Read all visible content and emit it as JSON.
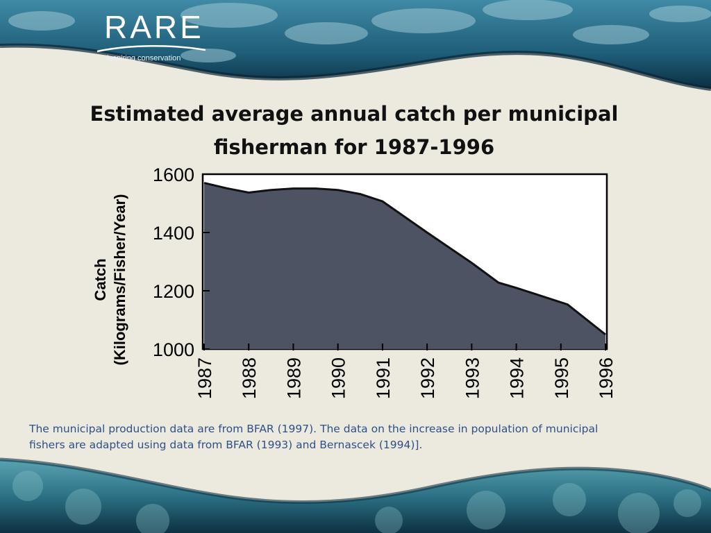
{
  "logo": {
    "name": "RARE",
    "tagline": "inspiring conservation"
  },
  "colors": {
    "area_fill": "#4e5363",
    "area_line": "#111111",
    "plot_bg": "#ffffff",
    "caption": "#2e4f88",
    "ocean_dark": "#0c3347",
    "ocean_mid": "#2a6b86"
  },
  "slide": {
    "title_line1": "Estimated average annual catch per municipal",
    "title_line2": "fisherman for 1987-1996",
    "caption_line1": "The municipal production data are from BFAR (1997). The data on the increase in population of municipal",
    "caption_line2": "fishers are adapted using data from BFAR (1993) and Bernascek (1994)]."
  },
  "chart_data": {
    "type": "area",
    "title": "Estimated average annual catch per municipal fisherman for 1987-1996",
    "ylabel_line1": "Catch",
    "ylabel_line2": "(Kilograms/Fisher/Year)",
    "xlabel": "",
    "ylim": [
      1000,
      1600
    ],
    "yticks": [
      1000,
      1200,
      1400,
      1600
    ],
    "xlim": [
      1987,
      1996
    ],
    "xticks": [
      1987,
      1988,
      1989,
      1990,
      1991,
      1992,
      1993,
      1994,
      1995,
      1996
    ],
    "grid": false,
    "legend": "none",
    "x": [
      1987,
      1987.5,
      1988,
      1988.5,
      1989,
      1989.5,
      1990,
      1990.5,
      1991,
      1992,
      1993,
      1993.6,
      1994,
      1995.15,
      1996
    ],
    "y": [
      1570,
      1552,
      1537,
      1546,
      1551,
      1551,
      1546,
      1532,
      1507,
      1400,
      1296,
      1228,
      1210,
      1153,
      1050
    ]
  }
}
